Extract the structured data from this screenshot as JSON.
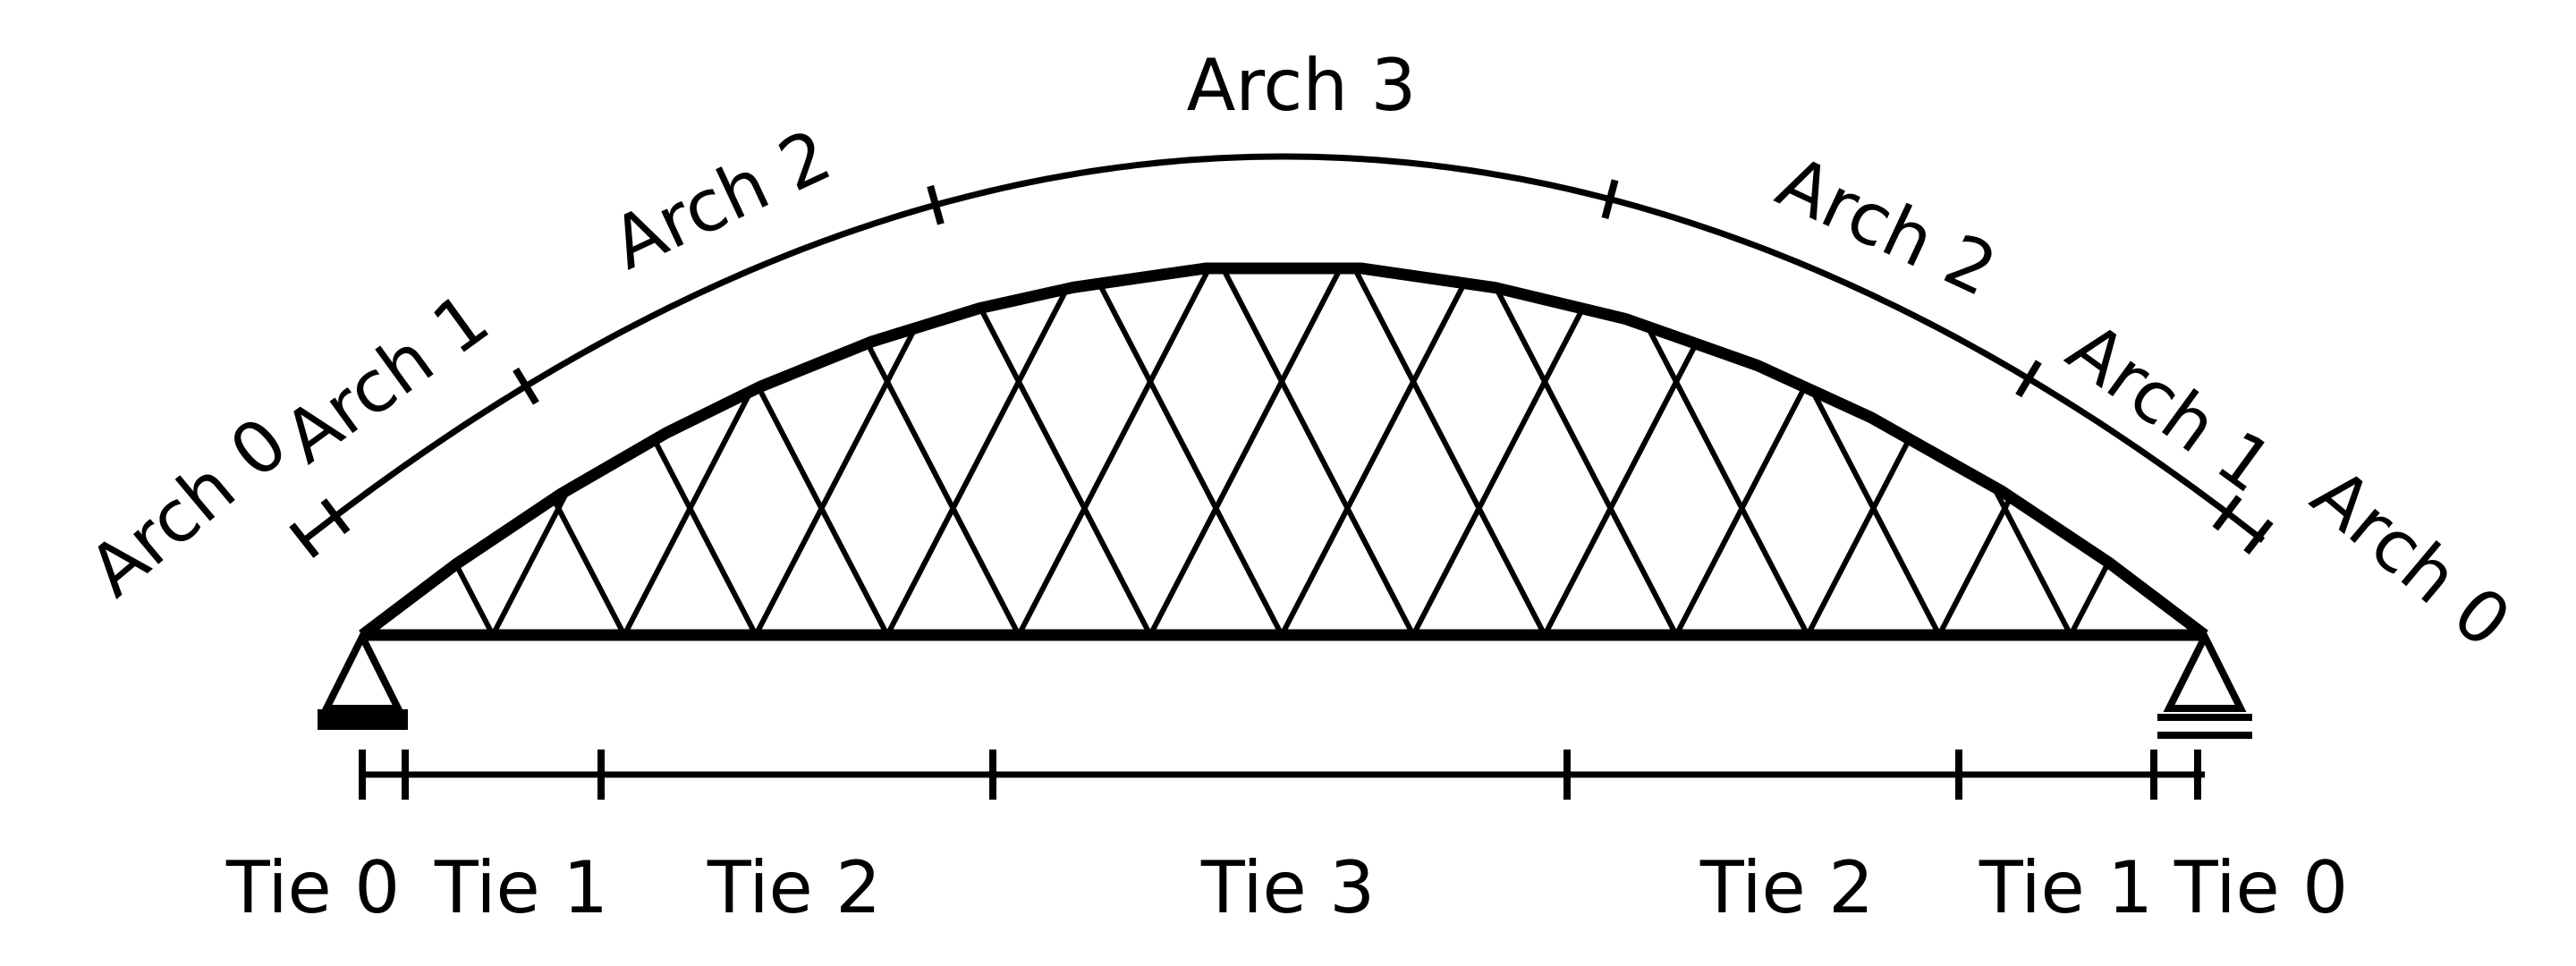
{
  "diagram": {
    "stroke_color": "#000000",
    "background": "#ffffff",
    "arch_labels": [
      "Arch 0",
      "Arch 1",
      "Arch 2",
      "Arch 3",
      "Arch 2",
      "Arch 1",
      "Arch 0"
    ],
    "tie_labels": [
      "Tie 0",
      "Tie 1",
      "Tie 2",
      "Tie 3",
      "Tie 2",
      "Tie 1",
      "Tie 0"
    ],
    "supports": [
      "pinned-support",
      "roller-support"
    ]
  }
}
